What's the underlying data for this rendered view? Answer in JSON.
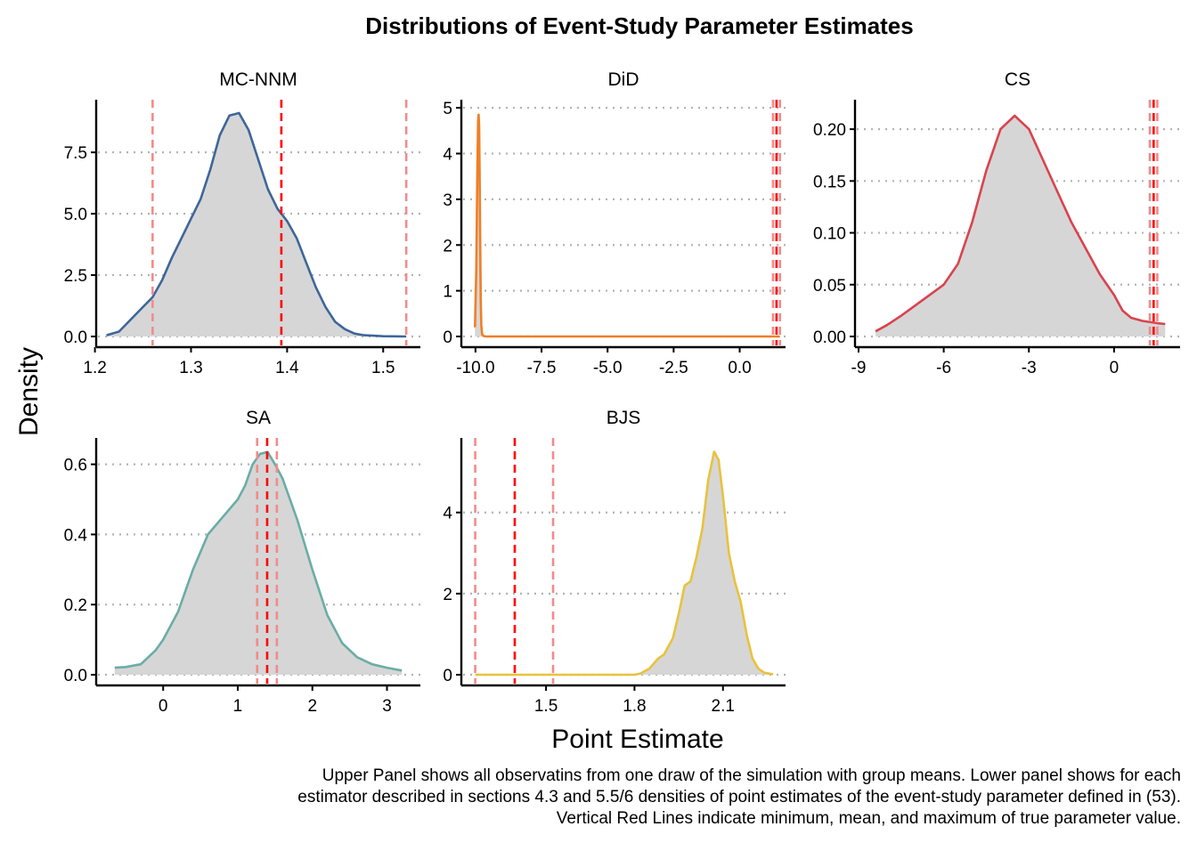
{
  "title": "Distributions of Event-Study Parameter Estimates",
  "xlabel": "Point Estimate",
  "ylabel": "Density",
  "caption": [
    "Upper Panel shows all observatins from one draw of the simulation with group means. Lower panel shows for each",
    "estimator described in sections 4.3 and 5.5/6 densities of point estimates of the event-study parameter defined in (53).",
    "Vertical Red Lines indicate minimum, mean, and maximum of true parameter value."
  ],
  "colors": {
    "fill": "#d6d6d6",
    "grid": "#b3b3b3",
    "vline_minmax": "#f28b8b",
    "vline_mean": "#ff0000"
  },
  "chart_data": [
    {
      "type": "area",
      "panel": "MC-NNM",
      "color": "#3e6699",
      "xlim": [
        1.205,
        1.535
      ],
      "ylim": [
        0,
        9.5
      ],
      "xticks": [
        1.2,
        1.3,
        1.4,
        1.5
      ],
      "xtick_labels": [
        "1.2",
        "1.3",
        "1.4",
        "1.5"
      ],
      "yticks": [
        0,
        2.5,
        5.0,
        7.5
      ],
      "ytick_labels": [
        "0.0",
        "2.5",
        "5.0",
        "7.5"
      ],
      "true_param": {
        "min": 1.26,
        "mean": 1.394,
        "max": 1.524
      },
      "x": [
        1.212,
        1.225,
        1.24,
        1.25,
        1.26,
        1.27,
        1.28,
        1.29,
        1.3,
        1.31,
        1.32,
        1.33,
        1.34,
        1.35,
        1.36,
        1.37,
        1.38,
        1.39,
        1.4,
        1.41,
        1.42,
        1.43,
        1.44,
        1.45,
        1.46,
        1.47,
        1.48,
        1.5,
        1.524
      ],
      "y": [
        0.05,
        0.2,
        0.8,
        1.2,
        1.6,
        2.3,
        3.2,
        4.0,
        4.8,
        5.6,
        6.8,
        8.2,
        9.0,
        9.1,
        8.4,
        7.2,
        6.0,
        5.2,
        4.7,
        4.0,
        3.0,
        2.0,
        1.2,
        0.6,
        0.3,
        0.12,
        0.05,
        0.01,
        0.0
      ]
    },
    {
      "type": "area",
      "panel": "DiD",
      "color": "#f07f27",
      "xlim": [
        -10.4,
        1.6
      ],
      "ylim": [
        0,
        5.1
      ],
      "xticks": [
        -10,
        -7.5,
        -5,
        -2.5,
        0
      ],
      "xtick_labels": [
        "-10.0",
        "-7.5",
        "-5.0",
        "-2.5",
        "0.0"
      ],
      "yticks": [
        0,
        1,
        2,
        3,
        4,
        5
      ],
      "ytick_labels": [
        "0",
        "1",
        "2",
        "3",
        "4",
        "5"
      ],
      "true_param": {
        "min": 1.26,
        "mean": 1.394,
        "max": 1.524
      },
      "x": [
        -10.02,
        -9.97,
        -9.93,
        -9.9,
        -9.88,
        -9.86,
        -9.84,
        -9.82,
        -9.8,
        -9.78,
        -9.75,
        -9.7,
        -9.6,
        -9.4,
        -9.0,
        -8.0,
        -5.0,
        -2.0,
        0.0,
        1.0,
        1.524
      ],
      "y": [
        0.2,
        1.5,
        3.5,
        4.7,
        4.85,
        4.6,
        3.4,
        2.0,
        0.8,
        0.25,
        0.05,
        0.01,
        0.0,
        0.0,
        0.0,
        0.0,
        0.0,
        0.0,
        0.0,
        0.0,
        0.0
      ]
    },
    {
      "type": "area",
      "panel": "CS",
      "color": "#d9434e",
      "xlim": [
        -9.0,
        2.2
      ],
      "ylim": [
        0,
        0.225
      ],
      "xticks": [
        -9,
        -6,
        -3,
        0
      ],
      "xtick_labels": [
        "-9",
        "-6",
        "-3",
        "0"
      ],
      "yticks": [
        0,
        0.05,
        0.1,
        0.15,
        0.2
      ],
      "ytick_labels": [
        "0.00",
        "0.05",
        "0.10",
        "0.15",
        "0.20"
      ],
      "true_param": {
        "min": 1.26,
        "mean": 1.394,
        "max": 1.524
      },
      "x": [
        -8.4,
        -8.0,
        -7.5,
        -7.0,
        -6.5,
        -6.0,
        -5.5,
        -5.0,
        -4.5,
        -4.0,
        -3.5,
        -3.0,
        -2.5,
        -2.0,
        -1.5,
        -1.0,
        -0.5,
        0.0,
        0.3,
        0.6,
        1.0,
        1.5,
        1.8
      ],
      "y": [
        0.005,
        0.011,
        0.02,
        0.03,
        0.04,
        0.05,
        0.07,
        0.11,
        0.16,
        0.2,
        0.213,
        0.2,
        0.17,
        0.14,
        0.11,
        0.085,
        0.06,
        0.04,
        0.025,
        0.018,
        0.015,
        0.013,
        0.012
      ]
    },
    {
      "type": "area",
      "panel": "SA",
      "color": "#6aada6",
      "xlim": [
        -0.85,
        3.4
      ],
      "ylim": [
        0,
        0.665
      ],
      "xticks": [
        0,
        1,
        2,
        3
      ],
      "xtick_labels": [
        "0",
        "1",
        "2",
        "3"
      ],
      "yticks": [
        0,
        0.2,
        0.4,
        0.6
      ],
      "ytick_labels": [
        "0.0",
        "0.2",
        "0.4",
        "0.6"
      ],
      "true_param": {
        "min": 1.26,
        "mean": 1.394,
        "max": 1.524
      },
      "x": [
        -0.65,
        -0.5,
        -0.3,
        -0.1,
        0.0,
        0.2,
        0.4,
        0.6,
        0.8,
        1.0,
        1.1,
        1.2,
        1.3,
        1.4,
        1.5,
        1.6,
        1.8,
        2.0,
        2.2,
        2.4,
        2.6,
        2.8,
        3.0,
        3.2
      ],
      "y": [
        0.02,
        0.022,
        0.03,
        0.07,
        0.1,
        0.18,
        0.3,
        0.4,
        0.45,
        0.5,
        0.54,
        0.6,
        0.63,
        0.635,
        0.6,
        0.56,
        0.44,
        0.3,
        0.17,
        0.09,
        0.05,
        0.03,
        0.02,
        0.012
      ]
    },
    {
      "type": "area",
      "panel": "BJS",
      "color": "#e8c23e",
      "xlim": [
        1.225,
        2.3
      ],
      "ylim": [
        0,
        5.75
      ],
      "xticks": [
        1.5,
        1.8,
        2.1
      ],
      "xtick_labels": [
        "1.5",
        "1.8",
        "2.1"
      ],
      "yticks": [
        0,
        2,
        4
      ],
      "ytick_labels": [
        "0",
        "2",
        "4"
      ],
      "true_param": {
        "min": 1.26,
        "mean": 1.394,
        "max": 1.524
      },
      "x": [
        1.26,
        1.5,
        1.8,
        1.82,
        1.85,
        1.88,
        1.9,
        1.93,
        1.95,
        1.97,
        1.99,
        2.01,
        2.03,
        2.05,
        2.07,
        2.085,
        2.1,
        2.12,
        2.14,
        2.16,
        2.18,
        2.2,
        2.22,
        2.24,
        2.27
      ],
      "y": [
        0.0,
        0.0,
        0.0,
        0.03,
        0.15,
        0.4,
        0.5,
        0.9,
        1.5,
        2.2,
        2.3,
        2.9,
        3.6,
        4.8,
        5.5,
        5.3,
        4.4,
        3.0,
        2.3,
        1.8,
        1.0,
        0.4,
        0.15,
        0.05,
        0.01
      ]
    }
  ]
}
